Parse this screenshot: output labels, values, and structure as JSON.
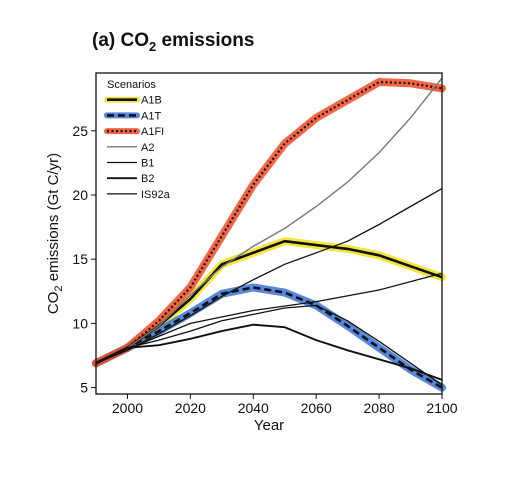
{
  "chart_data": {
    "type": "line",
    "title_prefix": "(a) CO",
    "title_sub": "2",
    "title_suffix": " emissions",
    "xlabel": "Year",
    "ylabel_prefix": "CO",
    "ylabel_sub": "2",
    "ylabel_suffix": " emissions (Gt C/yr)",
    "xlim": [
      1990,
      2100
    ],
    "ylim": [
      4.5,
      29.5
    ],
    "xticks": [
      2000,
      2020,
      2040,
      2060,
      2080,
      2100
    ],
    "yticks": [
      5,
      10,
      15,
      20,
      25
    ],
    "grid": false,
    "legend_title": "Scenarios",
    "legend_position": "top-left",
    "series": [
      {
        "name": "A1B",
        "style": "solid-thick",
        "highlight": "#f2e01a",
        "x": [
          1990,
          2000,
          2010,
          2020,
          2030,
          2050,
          2070,
          2080,
          2100
        ],
        "y": [
          6.9,
          8.1,
          9.8,
          11.9,
          14.6,
          16.4,
          15.8,
          15.3,
          13.6
        ]
      },
      {
        "name": "A1T",
        "style": "dashed-thick",
        "highlight": "#3a73d6",
        "x": [
          1990,
          2000,
          2010,
          2020,
          2030,
          2040,
          2050,
          2060,
          2070,
          2080,
          2090,
          2100
        ],
        "y": [
          6.9,
          8.1,
          9.4,
          10.8,
          12.3,
          12.8,
          12.4,
          11.4,
          9.8,
          8.1,
          6.4,
          5.0
        ]
      },
      {
        "name": "A1FI",
        "style": "dotted",
        "highlight": "#f04a24",
        "x": [
          1990,
          2000,
          2010,
          2020,
          2030,
          2040,
          2050,
          2060,
          2080,
          2090,
          2100
        ],
        "y": [
          6.9,
          8.1,
          10.2,
          12.8,
          16.8,
          20.8,
          24.0,
          26.0,
          28.8,
          28.7,
          28.3
        ]
      },
      {
        "name": "A2",
        "style": "solid-gray",
        "x": [
          1990,
          2000,
          2010,
          2020,
          2030,
          2040,
          2050,
          2060,
          2070,
          2080,
          2090,
          2100
        ],
        "y": [
          6.9,
          8.1,
          9.8,
          12.2,
          14.4,
          16.0,
          17.4,
          19.1,
          21.0,
          23.3,
          26.0,
          29.1
        ]
      },
      {
        "name": "B1",
        "style": "solid-thin",
        "x": [
          1990,
          2000,
          2010,
          2020,
          2030,
          2040,
          2050,
          2060,
          2070,
          2080,
          2090,
          2100
        ],
        "y": [
          6.9,
          8.1,
          8.7,
          9.4,
          10.2,
          10.7,
          11.2,
          11.4,
          10.2,
          8.6,
          6.9,
          5.2
        ]
      },
      {
        "name": "B2",
        "style": "solid-medium",
        "x": [
          1990,
          2000,
          2010,
          2020,
          2030,
          2040,
          2050,
          2060,
          2070,
          2080,
          2090,
          2100
        ],
        "y": [
          6.9,
          8.1,
          8.3,
          8.8,
          9.4,
          9.9,
          9.7,
          8.7,
          7.9,
          7.2,
          6.5,
          5.6
        ]
      },
      {
        "name": "IS92a",
        "style": "solid-thin",
        "x": [
          1990,
          2000,
          2010,
          2020,
          2030,
          2040,
          2050,
          2060,
          2070,
          2080,
          2090,
          2100
        ],
        "y": [
          6.9,
          7.9,
          9.2,
          10.6,
          12.1,
          13.4,
          14.6,
          15.5,
          16.4,
          17.7,
          19.1,
          20.5
        ]
      },
      {
        "name": "",
        "style": "solid-thin",
        "x": [
          2000,
          2020,
          2040,
          2060,
          2080,
          2100
        ],
        "y": [
          8.0,
          10.0,
          11.0,
          11.7,
          12.6,
          13.9
        ]
      }
    ]
  }
}
